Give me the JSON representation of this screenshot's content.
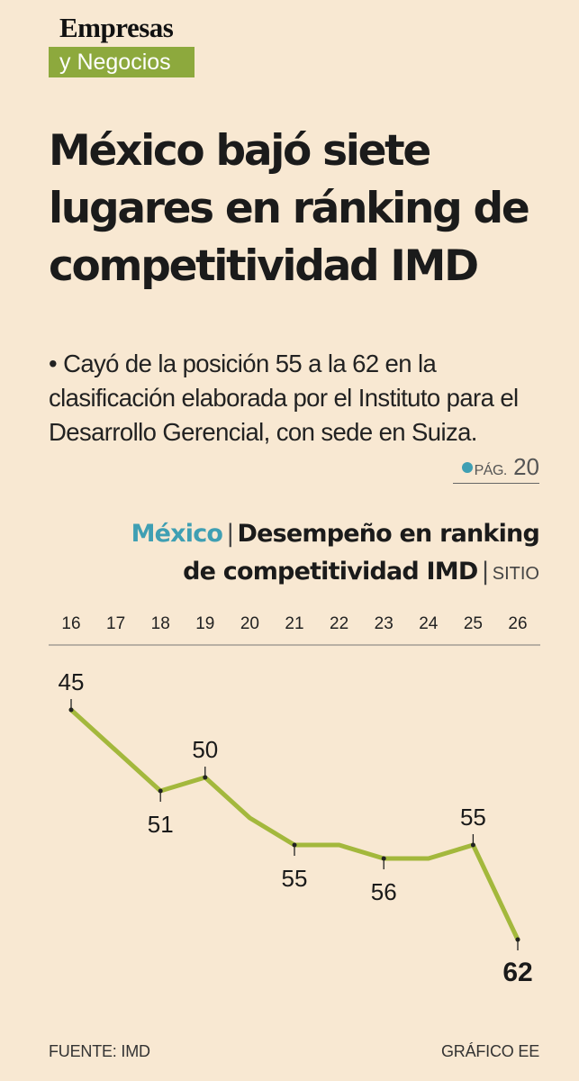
{
  "masthead": {
    "line1": "Empresas",
    "line2": "y Negocios"
  },
  "headline": "México bajó siete lugares en ránking de competitividad IMD",
  "subheadline": "• Cayó de la posición 55 a la 62 en la clasificación elaborada por el Instituto para el Desarrollo Gerencial, con sede en Suiza.",
  "page_ref": {
    "label": "PÁG.",
    "number": "20"
  },
  "chart_title": {
    "country": "México",
    "separator": "|",
    "title_line1": "Desempeño en ranking",
    "title_line2": "de competitividad IMD",
    "unit": "SITIO"
  },
  "chart_data": {
    "type": "line",
    "x": [
      "16",
      "17",
      "18",
      "19",
      "20",
      "21",
      "22",
      "23",
      "24",
      "25",
      "26"
    ],
    "values": [
      45,
      48,
      51,
      50,
      53,
      55,
      55,
      56,
      56,
      55,
      62
    ],
    "data_labels": [
      {
        "index": 0,
        "text": "45",
        "position": "above"
      },
      {
        "index": 2,
        "text": "51",
        "position": "below"
      },
      {
        "index": 3,
        "text": "50",
        "position": "above"
      },
      {
        "index": 5,
        "text": "55",
        "position": "below"
      },
      {
        "index": 7,
        "text": "56",
        "position": "below"
      },
      {
        "index": 9,
        "text": "55",
        "position": "above"
      },
      {
        "index": 10,
        "text": "62",
        "position": "below",
        "bold": true
      }
    ],
    "y_inverted": true,
    "line_color": "#a3b83c"
  },
  "footer": {
    "source": "FUENTE: IMD",
    "credit": "GRÁFICO EE"
  }
}
